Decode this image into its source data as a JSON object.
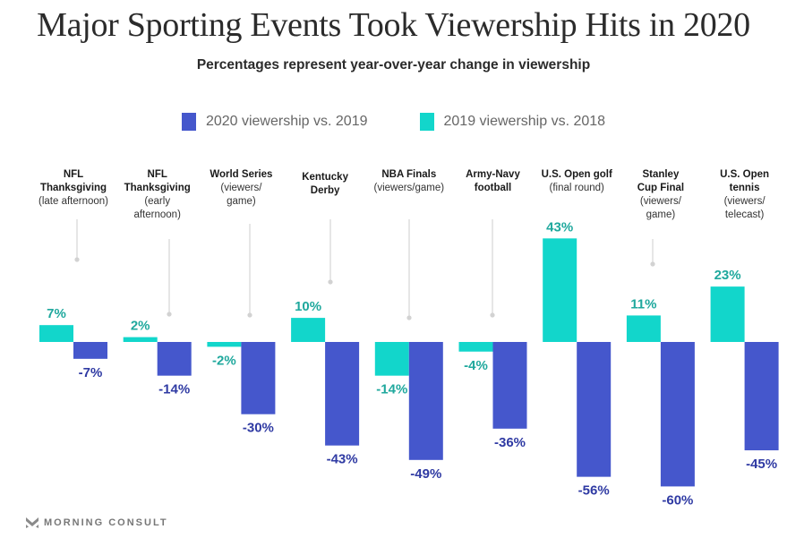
{
  "chart_data": {
    "type": "bar",
    "title": "Major Sporting Events Took Viewership Hits in 2020",
    "subtitle": "Percentages represent year-over-year change in viewership",
    "xlabel": "",
    "ylabel": "",
    "ylim": [
      -60,
      43
    ],
    "grid": false,
    "legend_position": "top-center",
    "categories": [
      {
        "bold": [
          "NFL",
          "Thanksgiving"
        ],
        "normal": [
          "(late afternoon)"
        ]
      },
      {
        "bold": [
          "NFL",
          "Thanksgiving"
        ],
        "normal": [
          "(early",
          "afternoon)"
        ]
      },
      {
        "bold": [
          "World Series"
        ],
        "normal": [
          "(viewers/",
          "game)"
        ]
      },
      {
        "bold": [
          "Kentucky",
          "Derby"
        ],
        "normal": []
      },
      {
        "bold": [
          "NBA Finals"
        ],
        "normal": [
          "(viewers/game)"
        ]
      },
      {
        "bold": [
          "Army-Navy",
          "football"
        ],
        "normal": []
      },
      {
        "bold": [
          "U.S. Open golf"
        ],
        "normal": [
          "(final round)"
        ]
      },
      {
        "bold": [
          "Stanley",
          "Cup Final"
        ],
        "normal": [
          "(viewers/",
          "game)"
        ]
      },
      {
        "bold": [
          "U.S. Open",
          "tennis"
        ],
        "normal": [
          "(viewers/",
          "telecast)"
        ]
      }
    ],
    "series": [
      {
        "name": "2019 viewership vs. 2018",
        "color": "#12d6cb",
        "label_color": "#1fa89d",
        "values": [
          7,
          2,
          -2,
          10,
          -14,
          -4,
          43,
          11,
          23
        ]
      },
      {
        "name": "2020 viewership vs. 2019",
        "color": "#4557cc",
        "label_color": "#2f3aa3",
        "values": [
          -7,
          -14,
          -30,
          -43,
          -49,
          -36,
          -56,
          -60,
          -45
        ]
      }
    ],
    "value_suffix": "%"
  },
  "legend": [
    {
      "label": "2020 viewership vs. 2019",
      "color": "#4557cc"
    },
    {
      "label": "2019 viewership vs. 2018",
      "color": "#12d6cb"
    }
  ],
  "footer": {
    "brand": "MORNING CONSULT",
    "trademark": "°"
  }
}
